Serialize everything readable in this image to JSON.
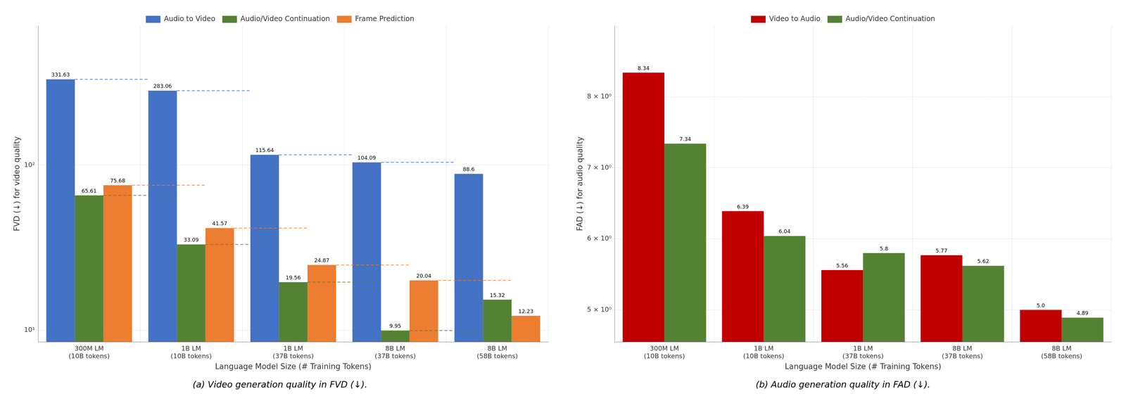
{
  "chart_data": [
    {
      "type": "bar",
      "title": "(a) Video generation quality in FVD (↓).",
      "xlabel": "Language Model Size (# Training Tokens)",
      "ylabel": "FVD (↓) for video quality",
      "categories": [
        "300M LM\n(10B tokens)",
        "1B LM\n(10B tokens)",
        "1B LM\n(37B tokens)",
        "8B LM\n(37B tokens)",
        "8B LM\n(58B tokens)"
      ],
      "series": [
        {
          "name": "Audio to Video",
          "color": "#4472C4",
          "values": [
            331.63,
            283.06,
            115.64,
            104.09,
            88.6
          ],
          "line_style": "dashed"
        },
        {
          "name": "Audio/Video Continuation",
          "color": "#548235",
          "values": [
            65.61,
            33.09,
            19.56,
            9.95,
            15.32
          ],
          "line_style": "dashed"
        },
        {
          "name": "Frame Prediction",
          "color": "#ED7D31",
          "values": [
            75.68,
            41.57,
            24.87,
            20.04,
            12.23
          ],
          "line_style": "dashed"
        }
      ],
      "log": "y",
      "ylim": [
        8.5,
        700
      ],
      "yticks": [
        {
          "value": 10,
          "label": "10¹"
        },
        {
          "value": 100,
          "label": "10²"
        }
      ],
      "grid": true,
      "legend": "top",
      "data_labels": true
    },
    {
      "type": "bar",
      "title": "(b) Audio generation quality in FAD (↓).",
      "xlabel": "Language Model Size (# Training Tokens)",
      "ylabel": "FAD (↓) for audio quality",
      "categories": [
        "300M LM\n(10B tokens)",
        "1B LM\n(10B tokens)",
        "1B LM\n(37B tokens)",
        "8B LM\n(37B tokens)",
        "8B LM\n(58B tokens)"
      ],
      "series": [
        {
          "name": "Video to Audio",
          "color": "#C00000",
          "values": [
            8.34,
            6.39,
            5.56,
            5.77,
            5.0
          ],
          "value_labels": [
            "8.34",
            "6.39",
            "5.56",
            "5.77",
            "5.0"
          ]
        },
        {
          "name": "Audio/Video Continuation",
          "color": "#548235",
          "values": [
            7.34,
            6.04,
            5.8,
            5.62,
            4.89
          ]
        }
      ],
      "ylim": [
        4.55,
        9.0
      ],
      "yticks": [
        {
          "value": 5,
          "label": "5 × 10⁰"
        },
        {
          "value": 6,
          "label": "6 × 10⁰"
        },
        {
          "value": 7,
          "label": "7 × 10⁰"
        },
        {
          "value": 8,
          "label": "8 × 10⁰"
        }
      ],
      "grid": true,
      "legend": "top",
      "data_labels": true
    }
  ]
}
